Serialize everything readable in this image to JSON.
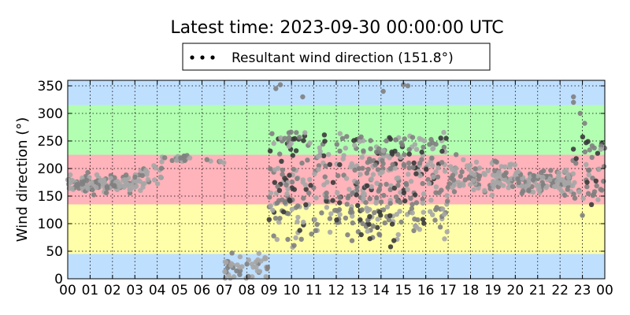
{
  "chart_data": {
    "type": "scatter",
    "title": "Latest time: 2023-09-30 00:00:00 UTC",
    "xlabel": "",
    "ylabel": "Wind direction (°)",
    "xlim": [
      0,
      24
    ],
    "ylim": [
      0,
      360
    ],
    "x_ticks": [
      "00",
      "01",
      "02",
      "03",
      "04",
      "05",
      "06",
      "07",
      "08",
      "09",
      "10",
      "11",
      "12",
      "13",
      "14",
      "15",
      "16",
      "17",
      "18",
      "19",
      "20",
      "21",
      "22",
      "23",
      "00"
    ],
    "y_ticks": [
      0,
      50,
      100,
      150,
      200,
      250,
      300,
      350
    ],
    "grid": true,
    "legend": {
      "placement": "top-center",
      "entry": "Resultant wind direction (151.8°)"
    },
    "bands": [
      {
        "from": 0,
        "to": 45,
        "color": "#bfdfff"
      },
      {
        "from": 45,
        "to": 135,
        "color": "#ffffaa"
      },
      {
        "from": 135,
        "to": 225,
        "color": "#ffb3bb"
      },
      {
        "from": 225,
        "to": 315,
        "color": "#b2ffb2"
      },
      {
        "from": 315,
        "to": 360,
        "color": "#bfdfff"
      }
    ],
    "point_colors": {
      "light": "#a6a6a6",
      "mid": "#808080",
      "dark": "#3a3a3a"
    },
    "series": [
      {
        "name": "Resultant wind direction (151.8°)",
        "segments": [
          {
            "x0": 0.0,
            "x1": 3.0,
            "center": 172,
            "spread": 14,
            "n": 140,
            "scatter": 0
          },
          {
            "x0": 3.0,
            "x1": 4.2,
            "center": 185,
            "spread": 22,
            "n": 30,
            "scatter": 0
          },
          {
            "x0": 4.2,
            "x1": 5.5,
            "center": 218,
            "spread": 6,
            "n": 20,
            "scatter": 0
          },
          {
            "x0": 6.2,
            "x1": 7.0,
            "center": 212,
            "spread": 3,
            "n": 6,
            "scatter": 0
          },
          {
            "x0": 7.0,
            "x1": 9.0,
            "center": 20,
            "spread": 22,
            "n": 50,
            "scatter": 0
          },
          {
            "x0": 9.0,
            "x1": 17.0,
            "center": 170,
            "spread": 95,
            "n": 480,
            "scatter": 1
          },
          {
            "x0": 17.0,
            "x1": 20.0,
            "center": 185,
            "spread": 28,
            "n": 110,
            "scatter": 0
          },
          {
            "x0": 20.0,
            "x1": 22.5,
            "center": 178,
            "spread": 20,
            "n": 120,
            "scatter": 0
          },
          {
            "x0": 22.5,
            "x1": 24.0,
            "center": 195,
            "spread": 55,
            "n": 50,
            "scatter": 1
          }
        ],
        "outliers": [
          {
            "x": 22.6,
            "y": 330
          },
          {
            "x": 22.6,
            "y": 320
          },
          {
            "x": 22.9,
            "y": 300
          },
          {
            "x": 23.1,
            "y": 282
          },
          {
            "x": 9.3,
            "y": 345
          },
          {
            "x": 9.5,
            "y": 352
          },
          {
            "x": 15.0,
            "y": 352
          },
          {
            "x": 15.2,
            "y": 350
          },
          {
            "x": 10.5,
            "y": 330
          },
          {
            "x": 14.1,
            "y": 340
          },
          {
            "x": 23.0,
            "y": 115
          },
          {
            "x": 20.3,
            "y": 155
          }
        ]
      }
    ]
  }
}
